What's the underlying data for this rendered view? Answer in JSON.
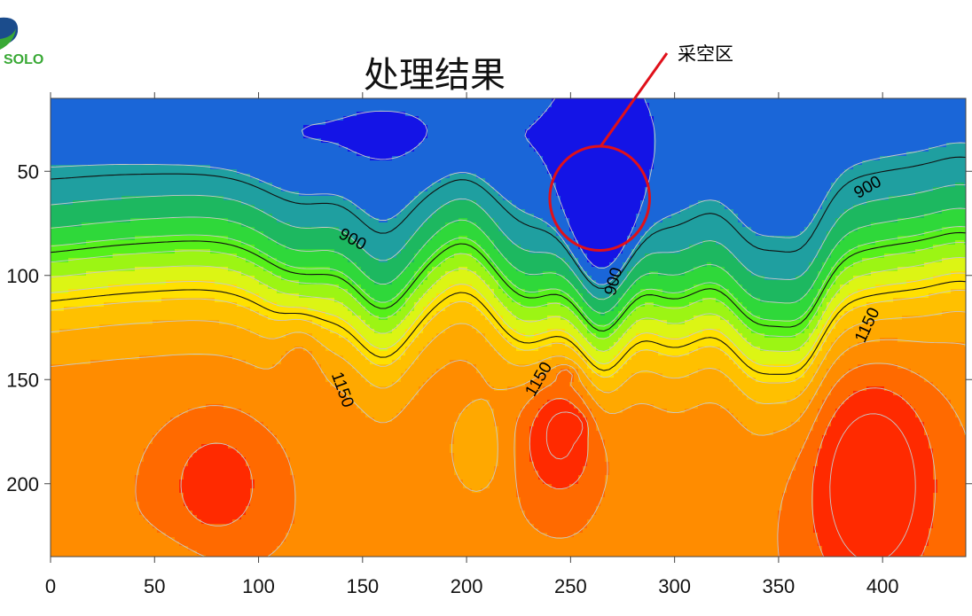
{
  "logo": {
    "text": "SOLO",
    "icon": "company-logo-icon"
  },
  "chart_data": {
    "type": "heatmap",
    "subtype": "filled-contour",
    "title": "处理结果",
    "xlabel": "",
    "ylabel": "",
    "xlim": [
      0,
      440
    ],
    "ylim": [
      235,
      15
    ],
    "x_ticks": [
      0,
      50,
      100,
      150,
      200,
      250,
      300,
      350,
      400
    ],
    "y_ticks": [
      50,
      100,
      150,
      200
    ],
    "grid": false,
    "colormap": [
      "#1414e6",
      "#1a66d8",
      "#1f9fa0",
      "#1db860",
      "#2fd83a",
      "#55f01a",
      "#9cf514",
      "#dcf514",
      "#ffe000",
      "#ffc000",
      "#ffa800",
      "#ff8c00",
      "#ff6a00",
      "#ff2a00"
    ],
    "contour_labels": [
      {
        "text": "900",
        "x": 145,
        "y": 83
      },
      {
        "text": "900",
        "x": 393,
        "y": 58
      },
      {
        "text": "900",
        "x": 271,
        "y": 103
      },
      {
        "text": "1150",
        "x": 140,
        "y": 155
      },
      {
        "text": "1150",
        "x": 235,
        "y": 150
      },
      {
        "text": "1150",
        "x": 393,
        "y": 124
      }
    ],
    "annotation": {
      "label": "采空区",
      "center": [
        264,
        63
      ],
      "radius_x": 24,
      "radius_y": 25,
      "color": "#e0101a"
    }
  }
}
